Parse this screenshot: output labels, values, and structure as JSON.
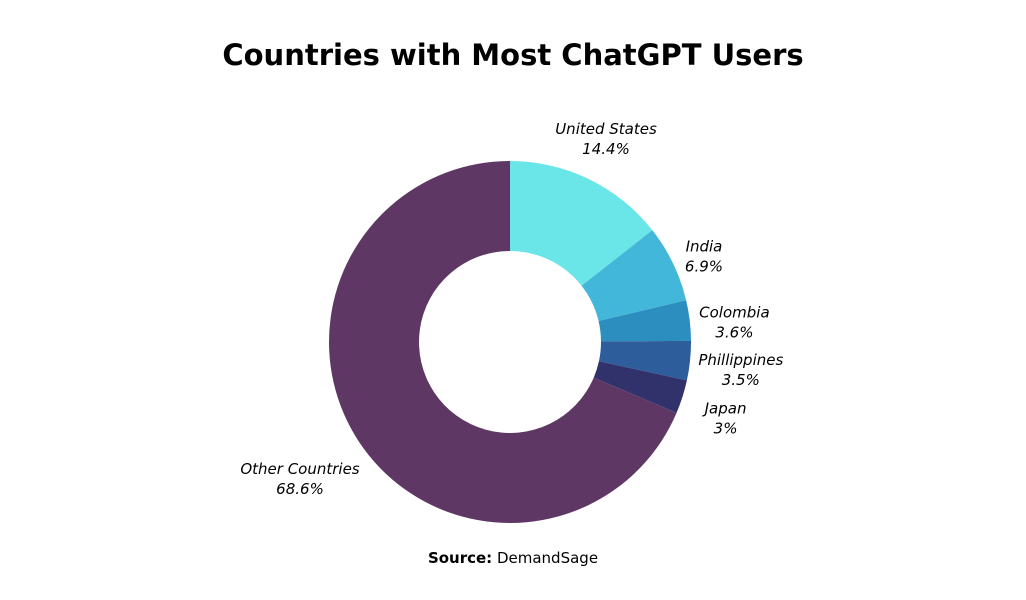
{
  "chart_data": {
    "type": "pie",
    "donut": true,
    "title": "Countries with Most ChatGPT Users",
    "slices": [
      {
        "label": "United States",
        "value": 14.4,
        "value_label": "14.4%",
        "color": "#6ae5e8"
      },
      {
        "label": "India",
        "value": 6.9,
        "value_label": "6.9%",
        "color": "#43b7d9"
      },
      {
        "label": "Colombia",
        "value": 3.6,
        "value_label": "3.6%",
        "color": "#2b8ebf"
      },
      {
        "label": "Phillippines",
        "value": 3.5,
        "value_label": "3.5%",
        "color": "#2d5d9b"
      },
      {
        "label": "Japan",
        "value": 3,
        "value_label": "3%",
        "color": "#31316b"
      },
      {
        "label": "Other Countries",
        "value": 68.6,
        "value_label": "68.6%",
        "color": "#5e3764"
      }
    ],
    "legend": "none"
  },
  "source": {
    "label": "Source:",
    "text": "DemandSage"
  }
}
